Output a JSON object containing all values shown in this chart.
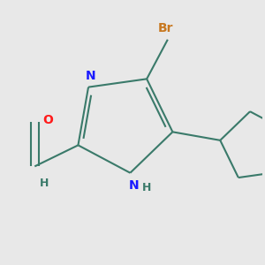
{
  "background_color": "#e8e8e8",
  "bond_color": "#3a7a6a",
  "bond_width": 1.5,
  "atom_colors": {
    "N": "#1a1aff",
    "O": "#ff1a1a",
    "Br": "#c87820",
    "C": "#3a7a6a",
    "H": "#3a7a6a"
  },
  "font_size_atom": 10,
  "font_size_h": 9
}
